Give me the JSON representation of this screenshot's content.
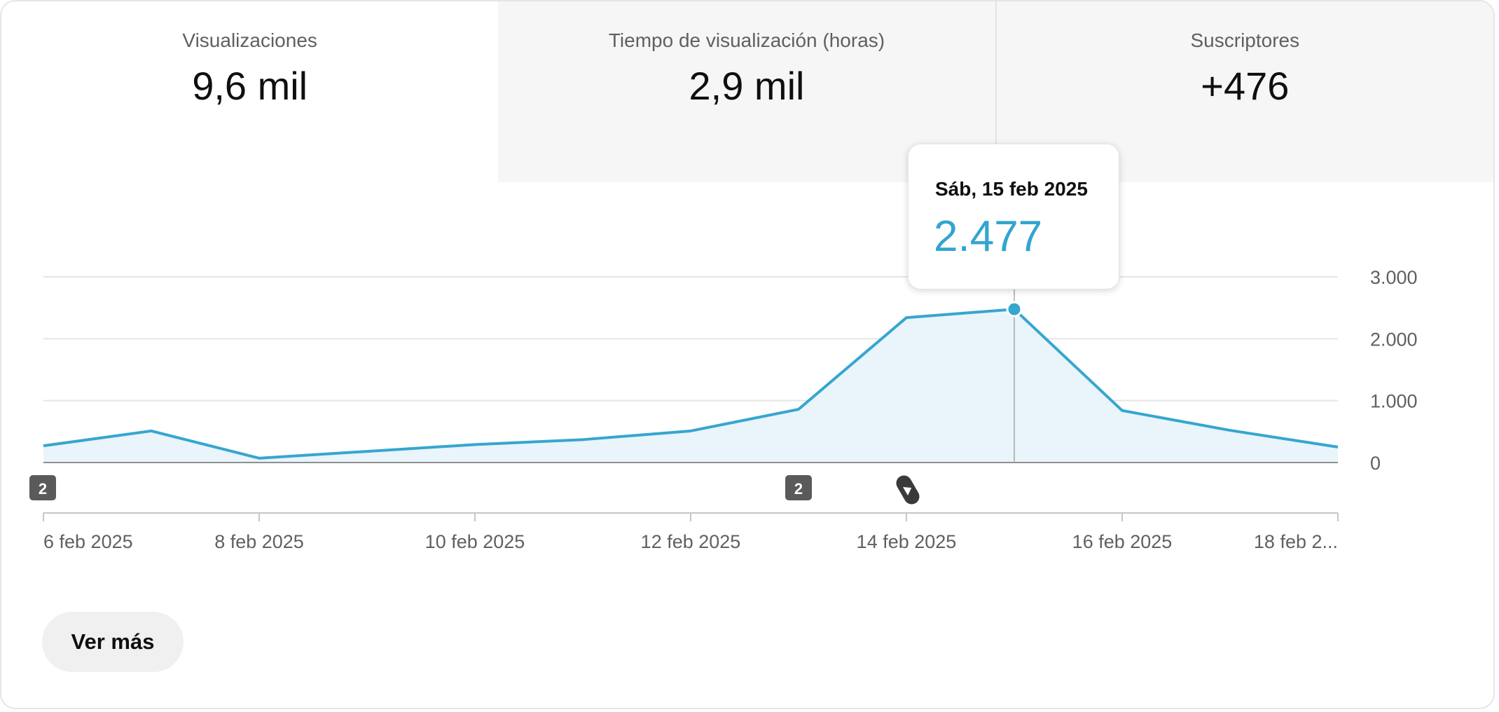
{
  "tabs": [
    {
      "label": "Visualizaciones",
      "value": "9,6 mil"
    },
    {
      "label": "Tiempo de visualización (horas)",
      "value": "2,9 mil"
    },
    {
      "label": "Suscriptores",
      "value": "+476"
    }
  ],
  "tooltip": {
    "date": "Sáb, 15 feb 2025",
    "value": "2.477"
  },
  "markers": [
    {
      "date": "6 feb 2025",
      "kind": "count-badge",
      "text": "2"
    },
    {
      "date": "13 feb 2025",
      "kind": "count-badge",
      "text": "2"
    },
    {
      "date": "14 feb 2025",
      "kind": "shorts-icon",
      "text": ""
    }
  ],
  "buttons": {
    "see_more": "Ver más"
  },
  "colors": {
    "line": "#36a6cf",
    "area": "#e9f4fb",
    "tooltip_value": "#32a5d0",
    "tab_inactive": "#f6f6f6"
  },
  "chart_data": {
    "type": "area",
    "x": [
      "6 feb 2025",
      "7 feb 2025",
      "8 feb 2025",
      "9 feb 2025",
      "10 feb 2025",
      "11 feb 2025",
      "12 feb 2025",
      "13 feb 2025",
      "14 feb 2025",
      "15 feb 2025",
      "16 feb 2025",
      "17 feb 2025",
      "18 feb 2025"
    ],
    "series": [
      {
        "values": [
          270,
          510,
          70,
          180,
          290,
          370,
          510,
          860,
          2340,
          2477,
          840,
          520,
          250
        ]
      }
    ],
    "x_ticks": [
      "6 feb 2025",
      "8 feb 2025",
      "10 feb 2025",
      "12 feb 2025",
      "14 feb 2025",
      "16 feb 2025",
      "18 feb 2..."
    ],
    "y_ticks": [
      "0",
      "1.000",
      "2.000",
      "3.000"
    ],
    "y_tick_values": [
      0,
      1000,
      2000,
      3000
    ],
    "ylim": [
      0,
      3000
    ],
    "highlight_index": 9,
    "grid": true,
    "xlabel": "",
    "ylabel": "",
    "title": ""
  }
}
